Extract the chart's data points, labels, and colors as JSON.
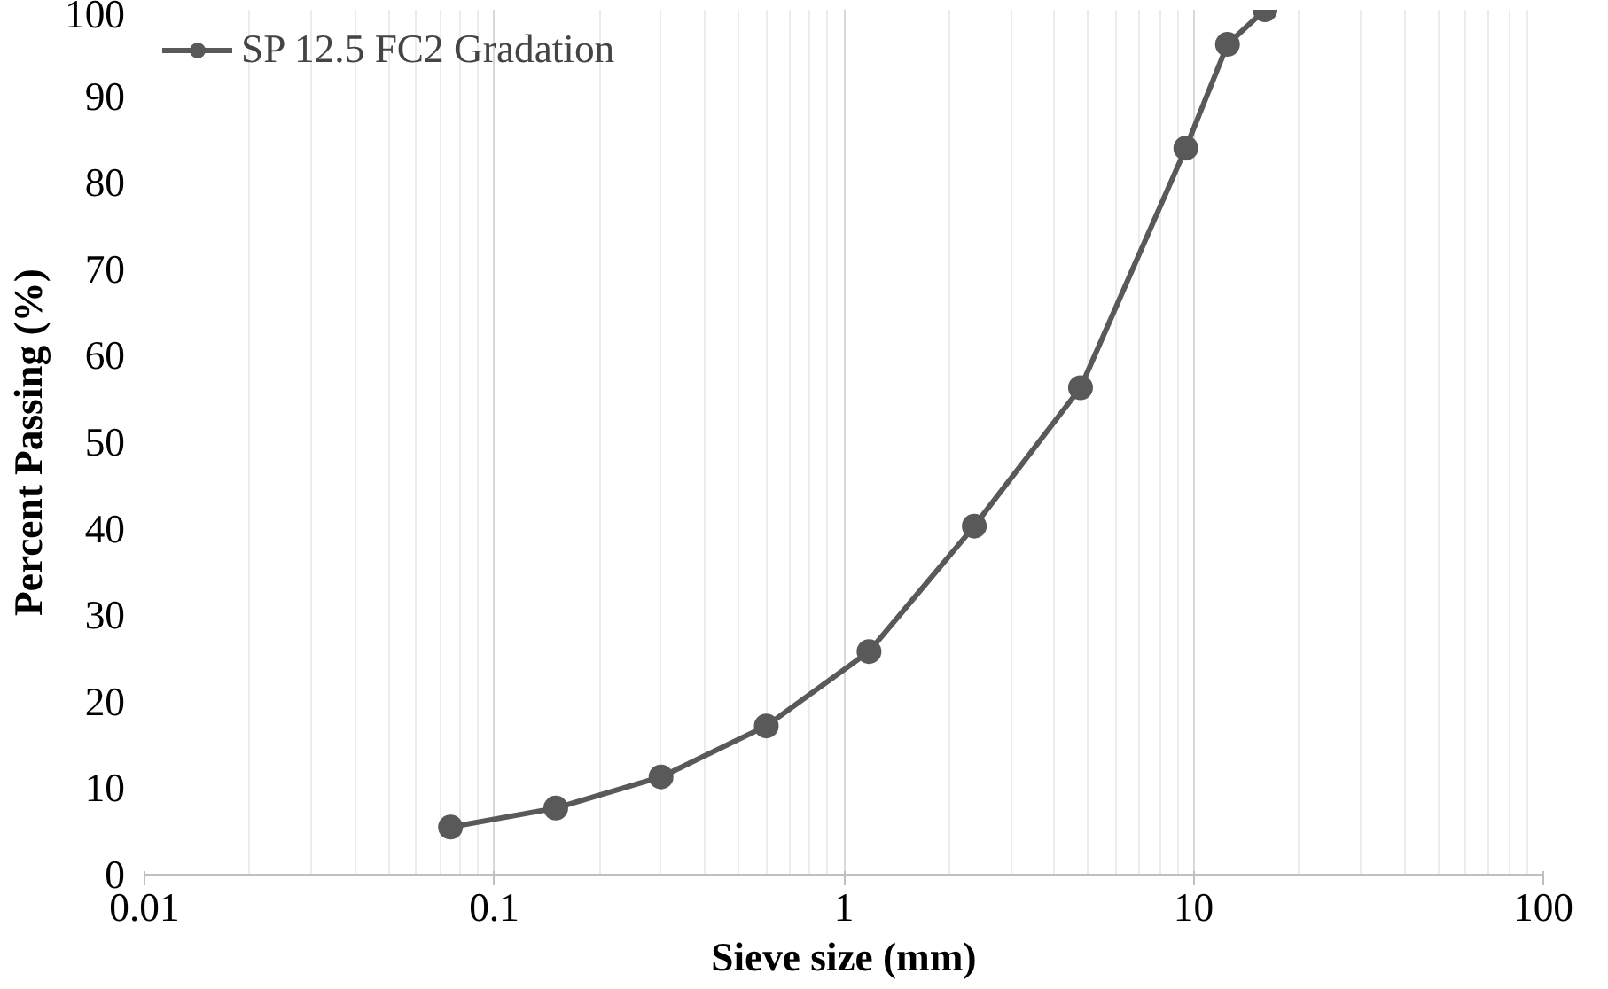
{
  "chart_data": {
    "type": "line",
    "xlabel": "Sieve size (mm)",
    "ylabel": "Percent Passing (%)",
    "x": [
      0.075,
      0.15,
      0.3,
      0.6,
      1.18,
      2.36,
      4.75,
      9.5,
      12.5,
      16
    ],
    "series": [
      {
        "name": "SP 12.5 FC2 Gradation",
        "color": "#595959",
        "values": [
          5.5,
          7.7,
          11.3,
          17.2,
          25.8,
          40.3,
          56.3,
          84,
          96,
          100
        ]
      }
    ],
    "log": "x",
    "xlim": [
      0.01,
      100
    ],
    "xticks": [
      0.01,
      0.1,
      1,
      10,
      100
    ],
    "ylim": [
      0,
      100
    ],
    "yticks": [
      0,
      10,
      20,
      30,
      40,
      50,
      60,
      70,
      80,
      90,
      100
    ],
    "grid": "x",
    "legend": "top left",
    "marker": "circle",
    "line_style": "solid"
  }
}
